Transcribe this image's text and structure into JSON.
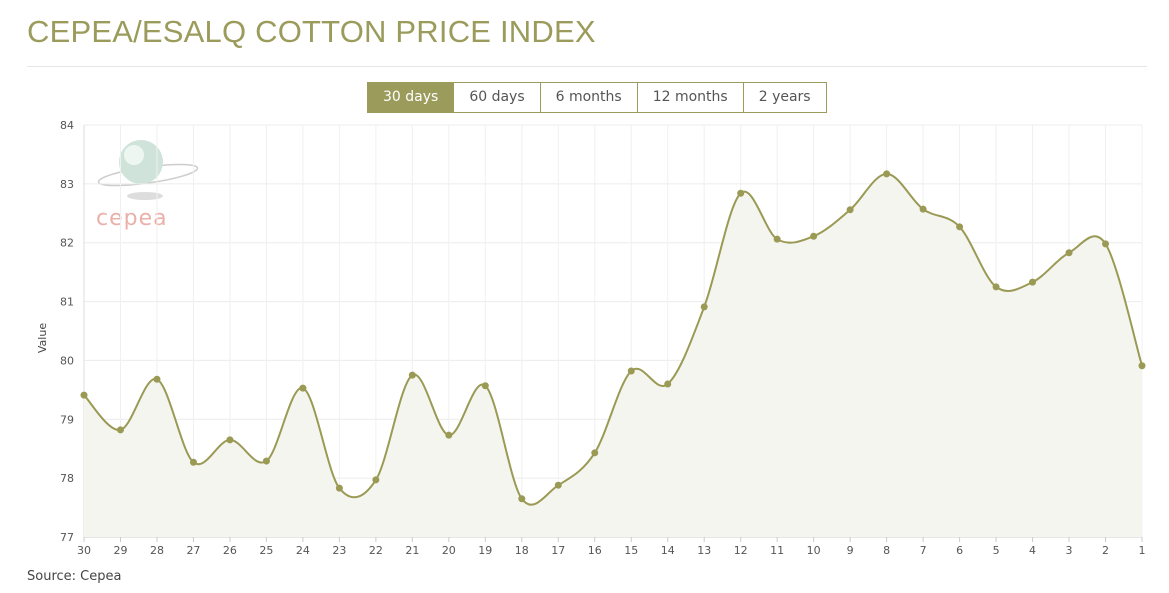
{
  "title": "CEPEA/ESALQ COTTON PRICE INDEX",
  "range_buttons": [
    {
      "label": "30 days",
      "active": true
    },
    {
      "label": "60 days",
      "active": false
    },
    {
      "label": "6 months",
      "active": false
    },
    {
      "label": "12 months",
      "active": false
    },
    {
      "label": "2 years",
      "active": false
    }
  ],
  "source": "Source: Cepea",
  "logo_text": "cepea",
  "colors": {
    "accent": "#9b9b5c",
    "line": "#9a9a55",
    "area": "#f5f5f0"
  },
  "chart_data": {
    "type": "area",
    "smooth": true,
    "categories": [
      "30",
      "29",
      "28",
      "27",
      "26",
      "25",
      "24",
      "23",
      "22",
      "21",
      "20",
      "19",
      "18",
      "17",
      "16",
      "15",
      "14",
      "13",
      "12",
      "11",
      "10",
      "9",
      "8",
      "7",
      "6",
      "5",
      "4",
      "3",
      "2",
      "1"
    ],
    "values": [
      79.41,
      78.82,
      79.68,
      78.27,
      78.65,
      78.29,
      79.53,
      77.83,
      77.97,
      79.75,
      78.73,
      79.57,
      77.65,
      77.88,
      78.43,
      79.82,
      79.6,
      80.91,
      82.84,
      82.06,
      82.11,
      82.56,
      83.17,
      82.57,
      82.27,
      81.25,
      81.33,
      81.83,
      81.98,
      79.91
    ],
    "ylabel": "Value",
    "xlabel": "",
    "ylim": [
      77,
      84
    ],
    "yticks": [
      77,
      78,
      79,
      80,
      81,
      82,
      83,
      84
    ],
    "grid": true
  }
}
